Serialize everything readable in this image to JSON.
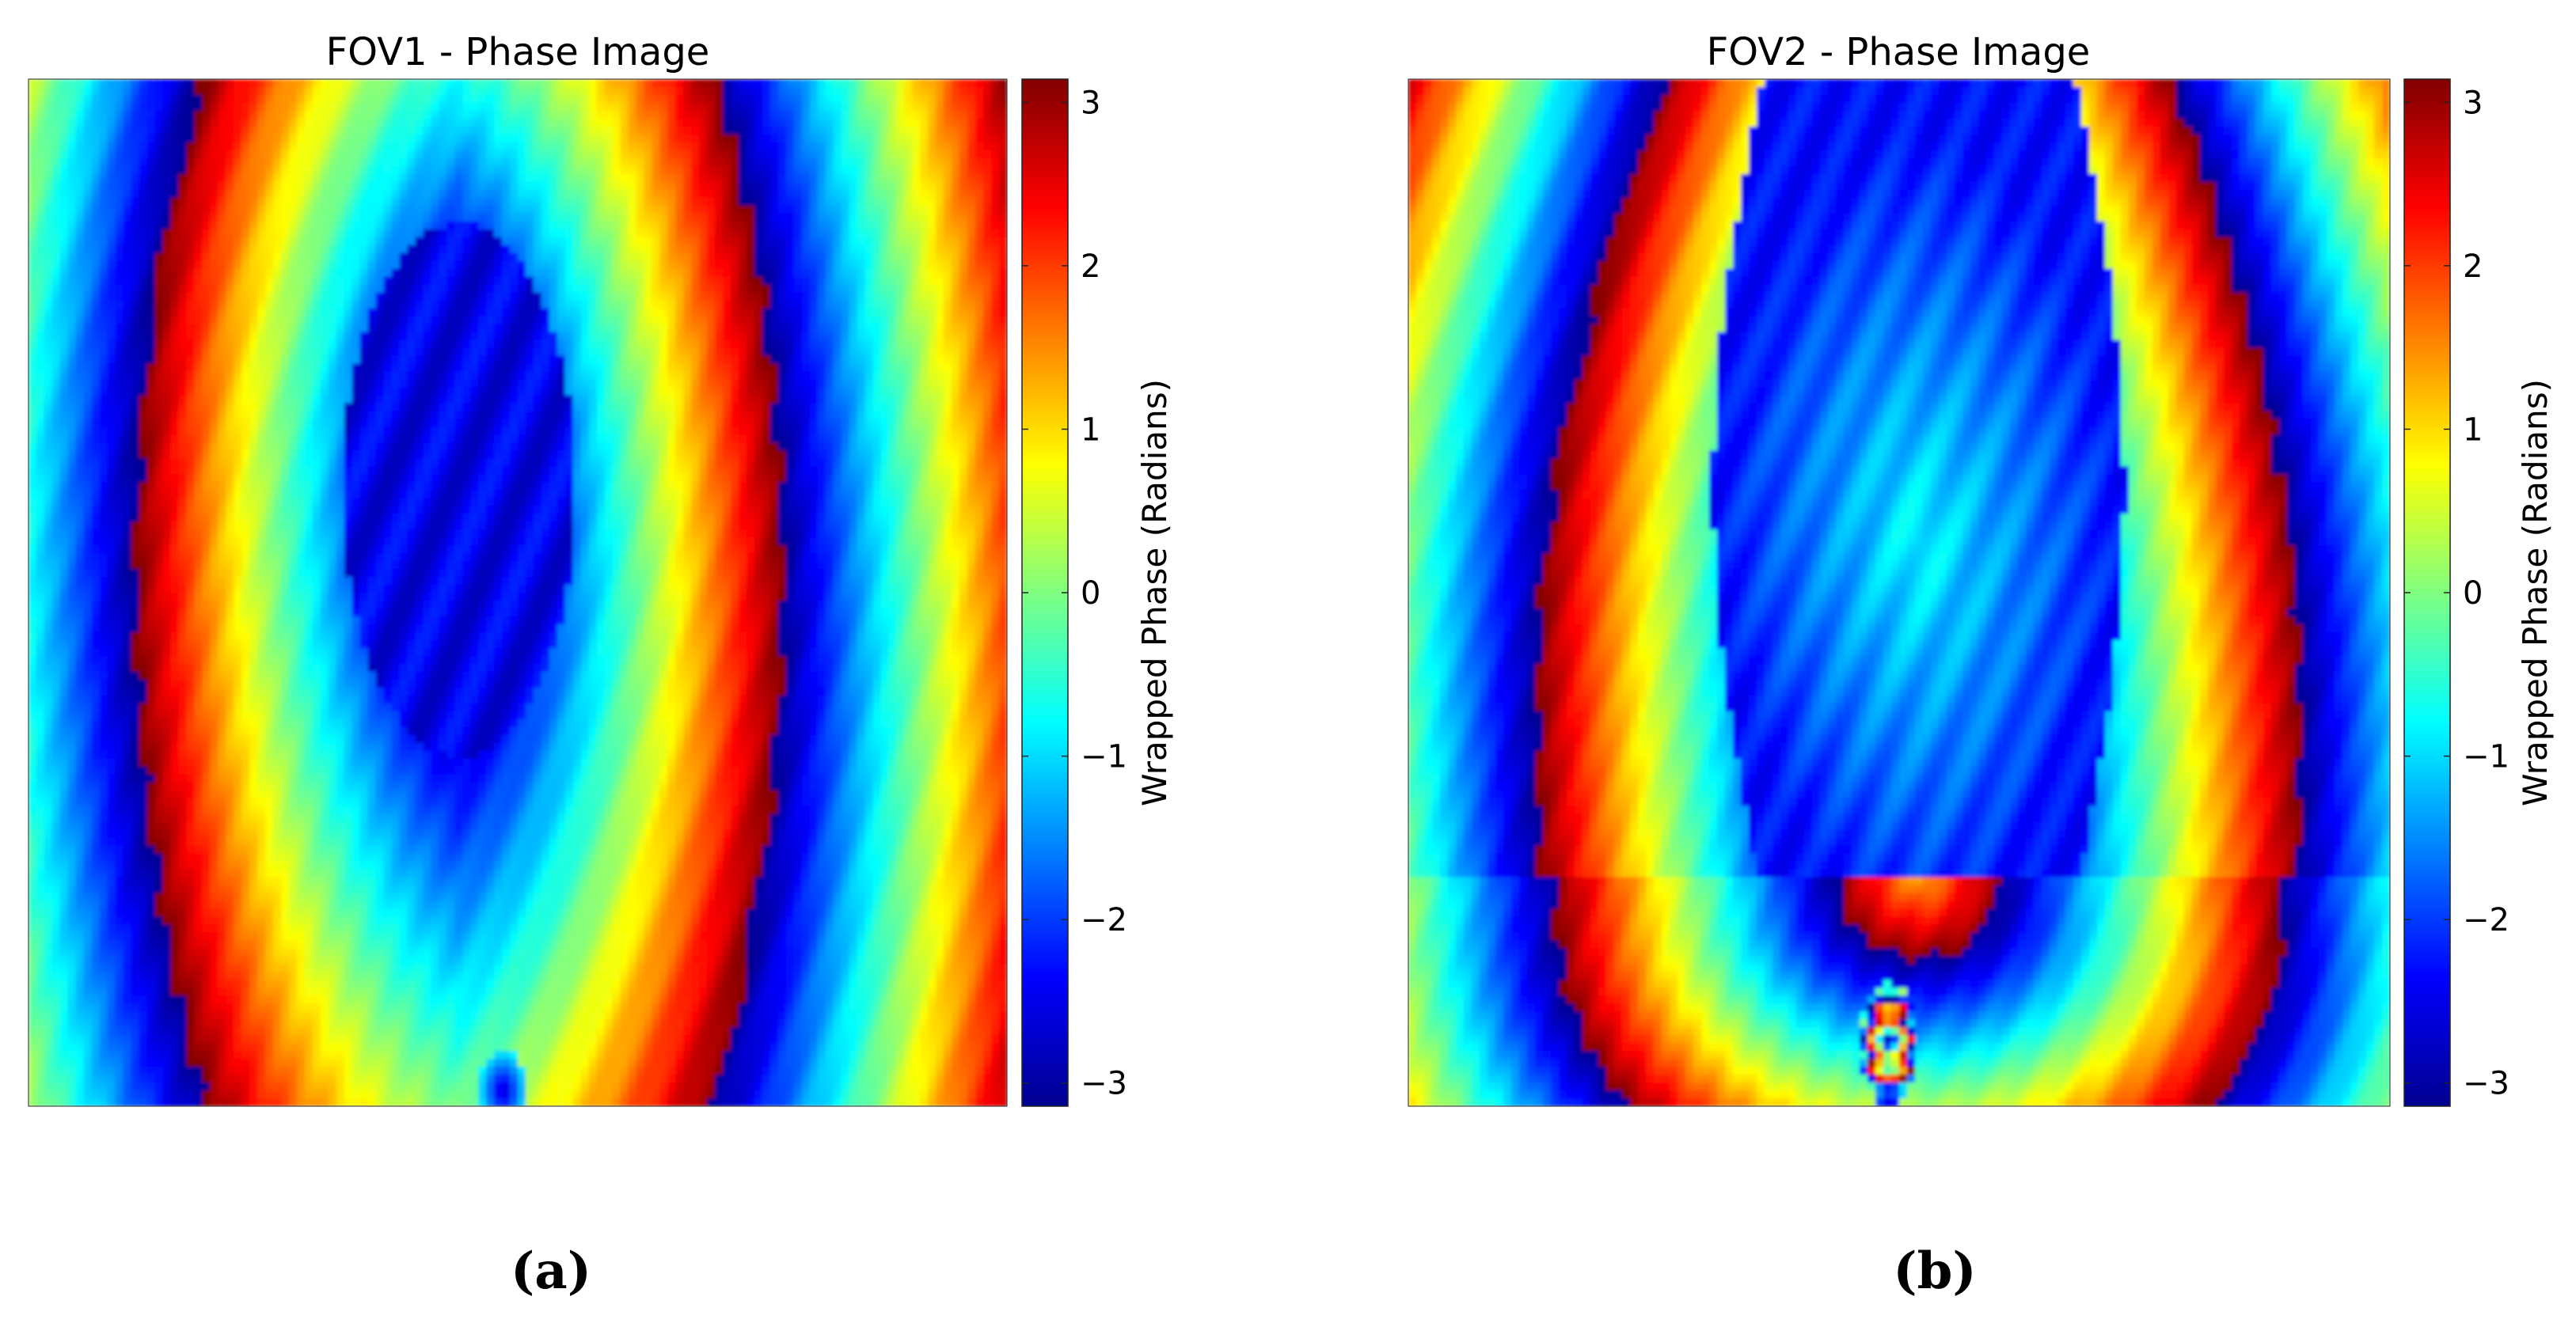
{
  "figure": {
    "panels": [
      {
        "caption": "(a)"
      },
      {
        "caption": "(b)"
      }
    ]
  },
  "chart_data": [
    {
      "type": "heatmap",
      "title": "FOV1 - Phase Image",
      "xlabel": "",
      "ylabel": "",
      "grid": false,
      "colormap": "jet",
      "colorbar": {
        "label": "Wrapped Phase (Radians)",
        "range": [
          -3.1416,
          3.1416
        ],
        "ticks": [
          3,
          2,
          1,
          0,
          -1,
          -2,
          -3
        ],
        "tick_labels": [
          "3",
          "2",
          "1",
          "0",
          "−1",
          "−2",
          "−3"
        ]
      },
      "pattern": "wrapped interference fringes: vertical bands wrapping from −π to π, with a closed elliptical blue region (≈ −2.5 rad) centered in the upper-middle and a small blue/red spot at the bottom center"
    },
    {
      "type": "heatmap",
      "title": "FOV2 - Phase Image",
      "xlabel": "",
      "ylabel": "",
      "grid": false,
      "colormap": "jet",
      "colorbar": {
        "label": "Wrapped Phase (Radians)",
        "range": [
          -3.1416,
          3.1416
        ],
        "ticks": [
          3,
          2,
          1,
          0,
          -1,
          -2,
          -3
        ],
        "tick_labels": [
          "3",
          "2",
          "1",
          "0",
          "−1",
          "−2",
          "−3"
        ]
      },
      "pattern": "wrapped interference fringes: curved vertical bands with a large open blue region (≈ −1 to −2.5 rad) extending from the top down to the middle, and a distorted defect near the bottom center"
    }
  ],
  "colors": {
    "jet": [
      "#00008f",
      "#0000ff",
      "#0080ff",
      "#00ffff",
      "#80ff80",
      "#ffff00",
      "#ff8000",
      "#ff0000",
      "#800000"
    ]
  }
}
